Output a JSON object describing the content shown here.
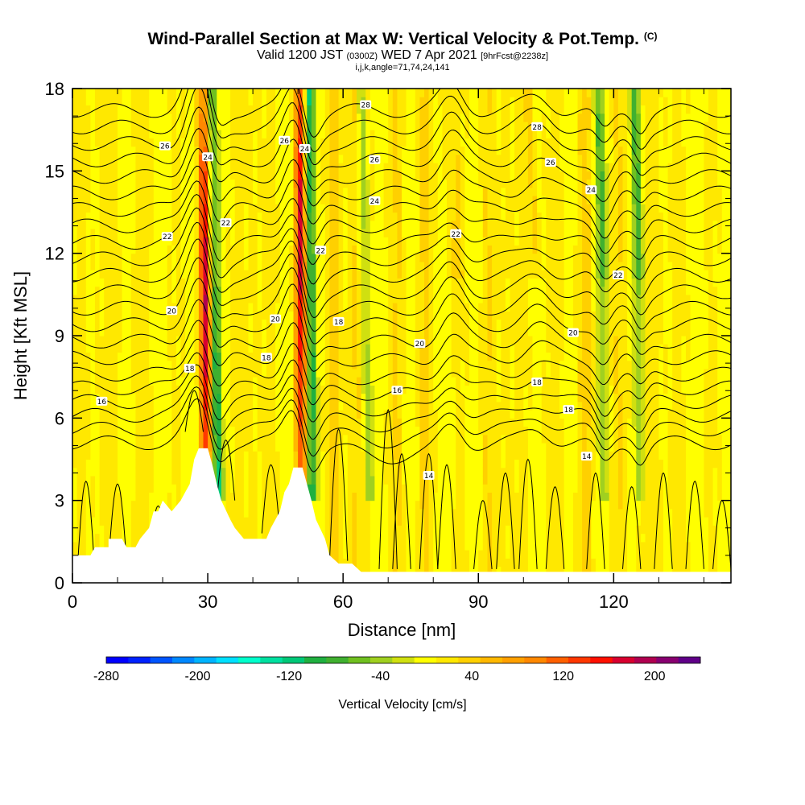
{
  "title": {
    "main": "Wind-Parallel Section at Max W: Vertical Velocity & Pot.Temp.",
    "main_units": "(C)",
    "valid_prefix": "Valid 1200 JST",
    "valid_utc": "(0300Z)",
    "valid_date": "WED 7 Apr 2021",
    "forecast": "[9hrFcst@2238z]",
    "indices": "i,j,k,angle=71,74,24,141"
  },
  "chart_data": {
    "type": "heatmap",
    "xlabel": "Distance [nm]",
    "ylabel": "Height [Kft MSL]",
    "xlim": [
      0,
      146
    ],
    "ylim": [
      0,
      18
    ],
    "x_ticks": [
      "0",
      "30",
      "60",
      "90",
      "120"
    ],
    "y_ticks": [
      "0",
      "3",
      "6",
      "9",
      "12",
      "15",
      "18"
    ],
    "colorbar": {
      "label": "Vertical Velocity [cm/s]",
      "range": [
        -280,
        240
      ],
      "tick_labels": [
        "-280",
        "-200",
        "-120",
        "-40",
        "40",
        "120",
        "200"
      ],
      "colors": [
        "#0000ff",
        "#0022ff",
        "#0055ff",
        "#0088ff",
        "#00b4ff",
        "#00e0ff",
        "#00ffcc",
        "#00e0a0",
        "#00c878",
        "#20b040",
        "#40b030",
        "#70c020",
        "#a0d020",
        "#d0e010",
        "#ffff00",
        "#ffe800",
        "#ffd000",
        "#ffb800",
        "#ffa000",
        "#ff8800",
        "#ff6000",
        "#ff3800",
        "#ff1000",
        "#d80030",
        "#b00050",
        "#880070",
        "#600088"
      ]
    },
    "terrain": [
      {
        "x": 0,
        "h": 1.0
      },
      {
        "x": 4,
        "h": 1.0
      },
      {
        "x": 5,
        "h": 1.3
      },
      {
        "x": 8,
        "h": 1.3
      },
      {
        "x": 8,
        "h": 1.6
      },
      {
        "x": 11,
        "h": 1.6
      },
      {
        "x": 12,
        "h": 1.3
      },
      {
        "x": 14,
        "h": 1.3
      },
      {
        "x": 15,
        "h": 1.6
      },
      {
        "x": 17,
        "h": 2.0
      },
      {
        "x": 18,
        "h": 2.6
      },
      {
        "x": 19,
        "h": 2.6
      },
      {
        "x": 20,
        "h": 3.0
      },
      {
        "x": 22,
        "h": 2.6
      },
      {
        "x": 24,
        "h": 3.0
      },
      {
        "x": 25,
        "h": 3.3
      },
      {
        "x": 26,
        "h": 3.6
      },
      {
        "x": 27,
        "h": 4.5
      },
      {
        "x": 28,
        "h": 4.9
      },
      {
        "x": 30,
        "h": 4.9
      },
      {
        "x": 31,
        "h": 4.3
      },
      {
        "x": 32,
        "h": 3.6
      },
      {
        "x": 33,
        "h": 3.0
      },
      {
        "x": 35,
        "h": 2.3
      },
      {
        "x": 36,
        "h": 2.0
      },
      {
        "x": 38,
        "h": 1.6
      },
      {
        "x": 43,
        "h": 1.6
      },
      {
        "x": 44,
        "h": 2.0
      },
      {
        "x": 46,
        "h": 2.6
      },
      {
        "x": 47,
        "h": 3.3
      },
      {
        "x": 48,
        "h": 3.6
      },
      {
        "x": 49,
        "h": 4.2
      },
      {
        "x": 51,
        "h": 4.2
      },
      {
        "x": 52,
        "h": 3.6
      },
      {
        "x": 53,
        "h": 3.0
      },
      {
        "x": 54,
        "h": 2.3
      },
      {
        "x": 56,
        "h": 1.6
      },
      {
        "x": 57,
        "h": 1.0
      },
      {
        "x": 59,
        "h": 0.7
      },
      {
        "x": 62,
        "h": 0.7
      },
      {
        "x": 64,
        "h": 0.4
      },
      {
        "x": 146,
        "h": 0.4
      }
    ],
    "updrafts": [
      {
        "x_base": 30,
        "x_top": 29.5,
        "w": 200,
        "width": 2.4
      },
      {
        "x_base": 51,
        "x_top": 50.5,
        "w": 170,
        "width": 2.2
      }
    ],
    "downdrafts": [
      {
        "x_base": 32,
        "x_top": 30.5,
        "w": -150,
        "width": 2.0
      },
      {
        "x_base": 53,
        "x_top": 52.5,
        "w": -130,
        "width": 1.8
      },
      {
        "x_base": 66,
        "x_top": 64,
        "w": -60,
        "width": 1.6
      },
      {
        "x_base": 118,
        "x_top": 117,
        "w": -50,
        "width": 1.8
      },
      {
        "x_base": 126,
        "x_top": 125,
        "w": -60,
        "width": 1.6
      }
    ],
    "isentropes": [
      {
        "base": 5.1,
        "label": "16"
      },
      {
        "base": 5.6,
        "label": ""
      },
      {
        "base": 6.1,
        "label": "18"
      },
      {
        "base": 6.6,
        "label": ""
      },
      {
        "base": 7.1,
        "label": "18"
      },
      {
        "base": 7.6,
        "label": ""
      },
      {
        "base": 8.2,
        "label": ""
      },
      {
        "base": 8.8,
        "label": "20"
      },
      {
        "base": 9.4,
        "label": ""
      },
      {
        "base": 10.0,
        "label": "20"
      },
      {
        "base": 10.6,
        "label": ""
      },
      {
        "base": 11.2,
        "label": ""
      },
      {
        "base": 11.8,
        "label": "22"
      },
      {
        "base": 12.4,
        "label": ""
      },
      {
        "base": 13.0,
        "label": ""
      },
      {
        "base": 13.6,
        "label": "24"
      },
      {
        "base": 14.2,
        "label": ""
      },
      {
        "base": 14.8,
        "label": "26"
      },
      {
        "base": 15.4,
        "label": ""
      },
      {
        "base": 16.0,
        "label": "26"
      },
      {
        "base": 16.6,
        "label": ""
      },
      {
        "base": 17.2,
        "label": "28"
      }
    ],
    "contour_labels": [
      {
        "text": "16",
        "x": 6.5,
        "y": 6.6
      },
      {
        "text": "18",
        "x": 26,
        "y": 7.8
      },
      {
        "text": "18",
        "x": 43,
        "y": 8.2
      },
      {
        "text": "18",
        "x": 59,
        "y": 9.5
      },
      {
        "text": "16",
        "x": 72,
        "y": 7.0
      },
      {
        "text": "14",
        "x": 79,
        "y": 3.9
      },
      {
        "text": "20",
        "x": 22,
        "y": 9.9
      },
      {
        "text": "20",
        "x": 45,
        "y": 9.6
      },
      {
        "text": "20",
        "x": 77,
        "y": 8.7
      },
      {
        "text": "20",
        "x": 111,
        "y": 9.1
      },
      {
        "text": "18",
        "x": 103,
        "y": 7.3
      },
      {
        "text": "18",
        "x": 110,
        "y": 6.3
      },
      {
        "text": "14",
        "x": 114,
        "y": 4.6
      },
      {
        "text": "22",
        "x": 21,
        "y": 12.6
      },
      {
        "text": "22",
        "x": 34,
        "y": 13.1
      },
      {
        "text": "22",
        "x": 55,
        "y": 12.1
      },
      {
        "text": "22",
        "x": 85,
        "y": 12.7
      },
      {
        "text": "22",
        "x": 121,
        "y": 11.2
      },
      {
        "text": "24",
        "x": 30,
        "y": 15.5
      },
      {
        "text": "24",
        "x": 51.5,
        "y": 15.8
      },
      {
        "text": "24",
        "x": 67,
        "y": 13.9
      },
      {
        "text": "24",
        "x": 115,
        "y": 14.3
      },
      {
        "text": "26",
        "x": 20.5,
        "y": 15.9
      },
      {
        "text": "26",
        "x": 47,
        "y": 16.1
      },
      {
        "text": "26",
        "x": 67,
        "y": 15.4
      },
      {
        "text": "26",
        "x": 106,
        "y": 15.3
      },
      {
        "text": "28",
        "x": 65,
        "y": 17.4
      },
      {
        "text": "28",
        "x": 103,
        "y": 16.6
      }
    ]
  }
}
